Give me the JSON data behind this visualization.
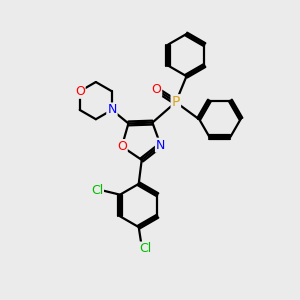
{
  "bg_color": "#ebebeb",
  "bond_color": "#000000",
  "bond_width": 1.6,
  "atom_colors": {
    "O": "#ff0000",
    "N": "#0000ff",
    "P": "#daa520",
    "Cl": "#00bb00",
    "C": "#000000"
  }
}
